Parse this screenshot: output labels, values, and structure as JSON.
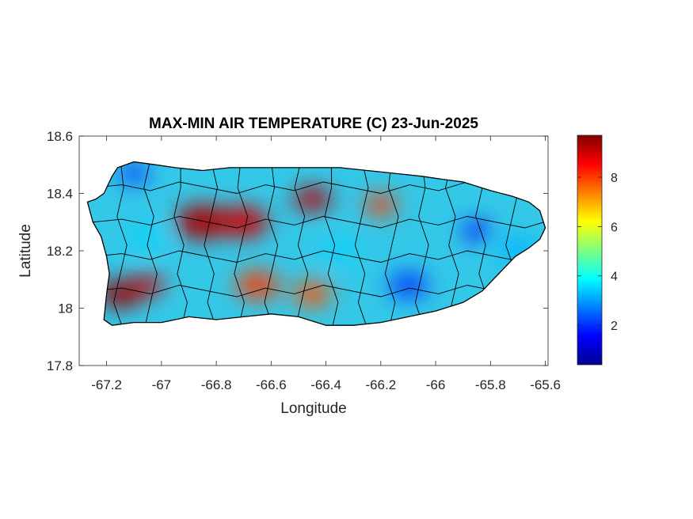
{
  "map": {
    "title": "MAX-MIN AIR TEMPERATURE (C) 23-Jun-2025",
    "xlabel": "Longitude",
    "ylabel": "Latitude",
    "xlim": [
      -67.3,
      -65.59
    ],
    "ylim": [
      17.8,
      18.6
    ],
    "x_ticks": [
      {
        "value": -67.2,
        "label": "-67.2"
      },
      {
        "value": -67.0,
        "label": "-67"
      },
      {
        "value": -66.8,
        "label": "-66.8"
      },
      {
        "value": -66.6,
        "label": "-66.6"
      },
      {
        "value": -66.4,
        "label": "-66.4"
      },
      {
        "value": -66.2,
        "label": "-66.2"
      },
      {
        "value": -66.0,
        "label": "-66"
      },
      {
        "value": -65.8,
        "label": "-65.8"
      },
      {
        "value": -65.6,
        "label": "-65.6"
      }
    ],
    "y_ticks": [
      {
        "value": 17.8,
        "label": "17.8"
      },
      {
        "value": 18.0,
        "label": "18"
      },
      {
        "value": 18.2,
        "label": "18.2"
      },
      {
        "value": 18.4,
        "label": "18.4"
      },
      {
        "value": 18.6,
        "label": "18.6"
      }
    ],
    "colormap": "jet",
    "colorbar": {
      "range": [
        0.4,
        9.7
      ],
      "ticks": [
        {
          "value": 2,
          "label": "2"
        },
        {
          "value": 4,
          "label": "4"
        },
        {
          "value": 6,
          "label": "6"
        },
        {
          "value": 8,
          "label": "8"
        }
      ]
    },
    "island_outline_lonlat": [
      [
        -67.27,
        18.37
      ],
      [
        -67.24,
        18.38
      ],
      [
        -67.21,
        18.4
      ],
      [
        -67.18,
        18.46
      ],
      [
        -67.16,
        18.49
      ],
      [
        -67.1,
        18.51
      ],
      [
        -67.02,
        18.5
      ],
      [
        -66.95,
        18.49
      ],
      [
        -66.85,
        18.48
      ],
      [
        -66.75,
        18.49
      ],
      [
        -66.65,
        18.49
      ],
      [
        -66.55,
        18.49
      ],
      [
        -66.45,
        18.49
      ],
      [
        -66.35,
        18.49
      ],
      [
        -66.25,
        18.48
      ],
      [
        -66.15,
        18.47
      ],
      [
        -66.05,
        18.46
      ],
      [
        -65.98,
        18.45
      ],
      [
        -65.9,
        18.44
      ],
      [
        -65.8,
        18.41
      ],
      [
        -65.72,
        18.39
      ],
      [
        -65.66,
        18.37
      ],
      [
        -65.62,
        18.34
      ],
      [
        -65.6,
        18.28
      ],
      [
        -65.62,
        18.24
      ],
      [
        -65.66,
        18.21
      ],
      [
        -65.71,
        18.18
      ],
      [
        -65.75,
        18.14
      ],
      [
        -65.79,
        18.1
      ],
      [
        -65.83,
        18.06
      ],
      [
        -65.9,
        18.02
      ],
      [
        -66.0,
        17.99
      ],
      [
        -66.1,
        17.97
      ],
      [
        -66.2,
        17.95
      ],
      [
        -66.3,
        17.94
      ],
      [
        -66.4,
        17.94
      ],
      [
        -66.5,
        17.97
      ],
      [
        -66.6,
        17.98
      ],
      [
        -66.7,
        17.97
      ],
      [
        -66.8,
        17.96
      ],
      [
        -66.9,
        17.97
      ],
      [
        -67.0,
        17.95
      ],
      [
        -67.1,
        17.95
      ],
      [
        -67.18,
        17.94
      ],
      [
        -67.21,
        17.96
      ],
      [
        -67.2,
        18.05
      ],
      [
        -67.19,
        18.12
      ],
      [
        -67.2,
        18.18
      ],
      [
        -67.22,
        18.25
      ],
      [
        -67.25,
        18.3
      ]
    ],
    "heat_blobs": [
      {
        "lon": -67.15,
        "lat": 18.05,
        "value": 9.5,
        "r": 0.08
      },
      {
        "lon": -67.05,
        "lat": 18.08,
        "value": 9.0,
        "r": 0.06
      },
      {
        "lon": -66.85,
        "lat": 18.3,
        "value": 9.3,
        "r": 0.1
      },
      {
        "lon": -66.7,
        "lat": 18.3,
        "value": 9.0,
        "r": 0.09
      },
      {
        "lon": -66.45,
        "lat": 18.38,
        "value": 9.2,
        "r": 0.07
      },
      {
        "lon": -66.2,
        "lat": 18.36,
        "value": 8.0,
        "r": 0.06
      },
      {
        "lon": -66.65,
        "lat": 18.08,
        "value": 8.0,
        "r": 0.08
      },
      {
        "lon": -66.45,
        "lat": 18.05,
        "value": 7.8,
        "r": 0.07
      },
      {
        "lon": -65.85,
        "lat": 18.27,
        "value": 1.5,
        "r": 0.05
      },
      {
        "lon": -66.1,
        "lat": 18.08,
        "value": 2.0,
        "r": 0.07
      },
      {
        "lon": -67.1,
        "lat": 18.47,
        "value": 1.8,
        "r": 0.05
      },
      {
        "lon": -67.05,
        "lat": 18.25,
        "value": 3.5,
        "r": 0.06
      },
      {
        "lon": -66.35,
        "lat": 18.2,
        "value": 3.5,
        "r": 0.06
      },
      {
        "lon": -65.7,
        "lat": 18.2,
        "value": 3.2,
        "r": 0.07
      }
    ]
  }
}
